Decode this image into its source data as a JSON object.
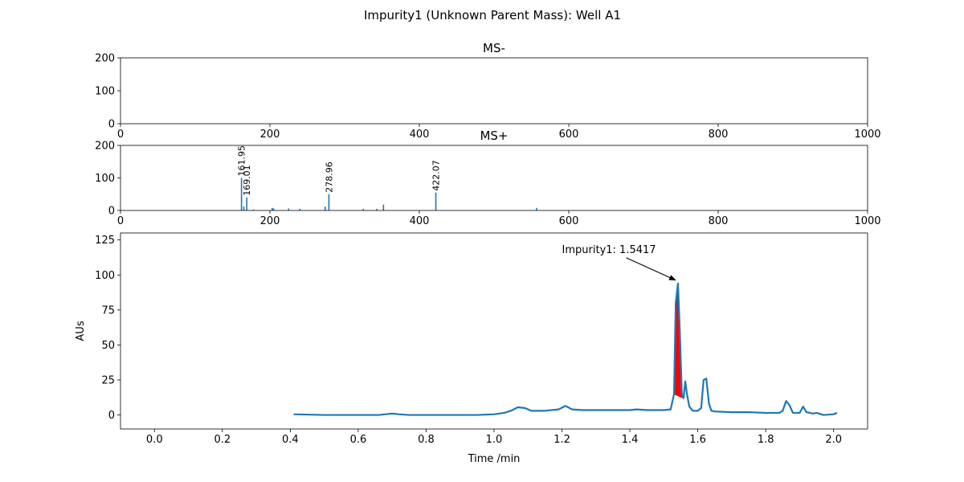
{
  "figure": {
    "title": "Impurity1 (Unknown Parent Mass): Well A1"
  },
  "chart_data": [
    {
      "type": "bar",
      "panel": "ms-minus",
      "title": "MS-",
      "xlim": [
        0,
        1000
      ],
      "ylim": [
        0,
        200
      ],
      "xticks": [
        "0",
        "200",
        "400",
        "600",
        "800",
        "1000"
      ],
      "yticks": [
        "0",
        "100",
        "200"
      ],
      "x": [],
      "values": [],
      "labels": [],
      "grid": false,
      "color": "#1f77b4"
    },
    {
      "type": "bar",
      "panel": "ms-plus",
      "title": "MS+",
      "xlim": [
        0,
        1000
      ],
      "ylim": [
        0,
        200
      ],
      "xticks": [
        "0",
        "200",
        "400",
        "600",
        "800",
        "1000"
      ],
      "yticks": [
        "0",
        "100",
        "200"
      ],
      "x": [
        161.95,
        165,
        169.01,
        178,
        203,
        205,
        225,
        240,
        274,
        278.96,
        325,
        343,
        352,
        422.07,
        557
      ],
      "values": [
        100,
        12,
        40,
        3,
        8,
        6,
        6,
        5,
        12,
        50,
        5,
        5,
        18,
        55,
        8
      ],
      "labels": [
        {
          "mz": 161.95,
          "text": "161.95"
        },
        {
          "mz": 169.01,
          "text": "169.01"
        },
        {
          "mz": 278.96,
          "text": "278.96"
        },
        {
          "mz": 422.07,
          "text": "422.07"
        }
      ],
      "grid": false,
      "color": "#1f77b4"
    },
    {
      "type": "line",
      "panel": "chromatogram",
      "xlabel": "Time /min",
      "ylabel": "AUs",
      "xlim": [
        -0.1,
        2.1
      ],
      "ylim": [
        -10,
        130
      ],
      "xticks": [
        "0.0",
        "0.2",
        "0.4",
        "0.6",
        "0.8",
        "1.0",
        "1.2",
        "1.4",
        "1.6",
        "1.8",
        "2.0"
      ],
      "yticks": [
        "0",
        "25",
        "50",
        "75",
        "100",
        "125"
      ],
      "series": [
        {
          "x": [
            0.41,
            0.5,
            0.6,
            0.66,
            0.68,
            0.7,
            0.72,
            0.75,
            0.8,
            0.9,
            0.95,
            1.0,
            1.03,
            1.05,
            1.07,
            1.09,
            1.11,
            1.15,
            1.19,
            1.21,
            1.23,
            1.26,
            1.3,
            1.35,
            1.4,
            1.42,
            1.45,
            1.5,
            1.52,
            1.53,
            1.535,
            1.5417,
            1.547,
            1.553,
            1.558,
            1.563,
            1.568,
            1.575,
            1.585,
            1.6,
            1.61,
            1.617,
            1.625,
            1.633,
            1.64,
            1.65,
            1.7,
            1.75,
            1.8,
            1.84,
            1.85,
            1.86,
            1.87,
            1.88,
            1.9,
            1.91,
            1.92,
            1.94,
            1.95,
            1.97,
            2.0,
            2.01
          ],
          "y": [
            0.5,
            0,
            0,
            0,
            0.5,
            1,
            0.5,
            0,
            0,
            0,
            0,
            0.5,
            1.5,
            3,
            5.5,
            5,
            3,
            3,
            4,
            6.5,
            4,
            3.5,
            3.5,
            3.5,
            3.5,
            4,
            3.5,
            3.5,
            4,
            15,
            80,
            94,
            60,
            15,
            12,
            24,
            15,
            6,
            3,
            3,
            5,
            25,
            26,
            8,
            3,
            2.5,
            2,
            2,
            1.5,
            1.5,
            3,
            10,
            7,
            1.5,
            1.5,
            6,
            2,
            1,
            1.5,
            0,
            0.5,
            1.5
          ],
          "color": "#1f77b4"
        }
      ],
      "highlight": {
        "x_range": [
          1.527,
          1.562
        ],
        "color": "#ff0000"
      },
      "annotation": {
        "text": "Impurity1: 1.5417",
        "text_x": 1.2,
        "text_y": 118,
        "point_x": 1.5417,
        "point_y": 94
      },
      "grid": false
    }
  ]
}
